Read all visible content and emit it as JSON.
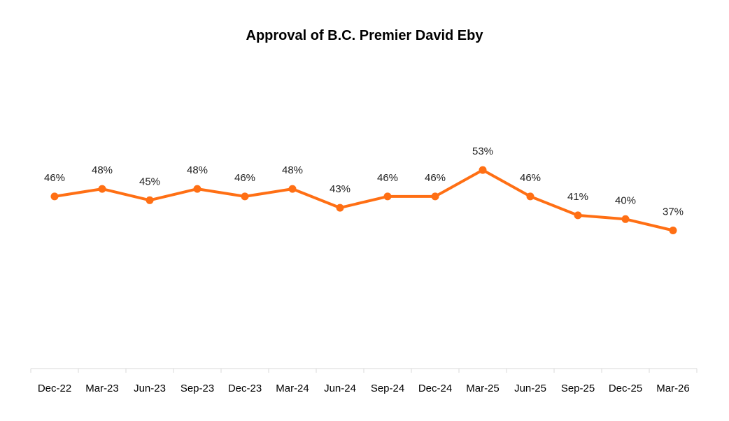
{
  "chart_data": {
    "type": "line",
    "title": "Approval of B.C. Premier David Eby",
    "xlabel": "",
    "ylabel": "",
    "categories": [
      "Dec-22",
      "Mar-23",
      "Jun-23",
      "Sep-23",
      "Dec-23",
      "Mar-24",
      "Jun-24",
      "Sep-24",
      "Dec-24",
      "Mar-25",
      "Jun-25",
      "Sep-25",
      "Dec-25",
      "Mar-26"
    ],
    "series": [
      {
        "name": "Approval",
        "values": [
          46,
          48,
          45,
          48,
          46,
          48,
          43,
          46,
          46,
          53,
          46,
          41,
          40,
          37
        ],
        "labels": [
          "46%",
          "48%",
          "45%",
          "48%",
          "46%",
          "48%",
          "43%",
          "46%",
          "46%",
          "53%",
          "46%",
          "41%",
          "40%",
          "37%"
        ]
      }
    ],
    "ylim": [
      0,
      100
    ],
    "grid": false,
    "legend": "none",
    "colors": {
      "line": "#FF6F14",
      "axis": "#D9D9D9"
    }
  }
}
